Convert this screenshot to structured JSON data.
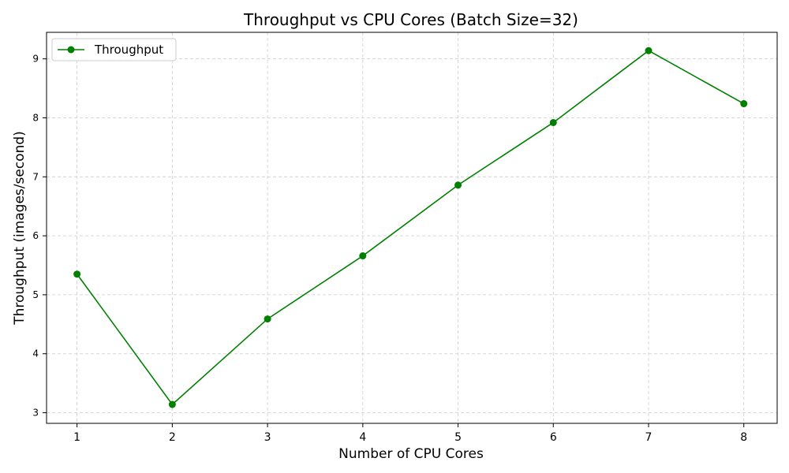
{
  "chart_data": {
    "type": "line",
    "title": "Throughput vs CPU Cores (Batch Size=32)",
    "xlabel": "Number of CPU Cores",
    "ylabel": "Throughput (images/second)",
    "x": [
      1,
      2,
      3,
      4,
      5,
      6,
      7,
      8
    ],
    "series": [
      {
        "name": "Throughput",
        "color": "#008000",
        "marker": "circle",
        "values": [
          5.35,
          3.14,
          4.59,
          5.66,
          6.86,
          7.92,
          9.14,
          8.24
        ]
      }
    ],
    "xlim": [
      0.68,
      8.35
    ],
    "ylim": [
      2.82,
      9.45
    ],
    "xticks": [
      1,
      2,
      3,
      4,
      5,
      6,
      7,
      8
    ],
    "yticks": [
      3,
      4,
      5,
      6,
      7,
      8,
      9
    ],
    "grid": true,
    "legend_position": "top-left"
  }
}
